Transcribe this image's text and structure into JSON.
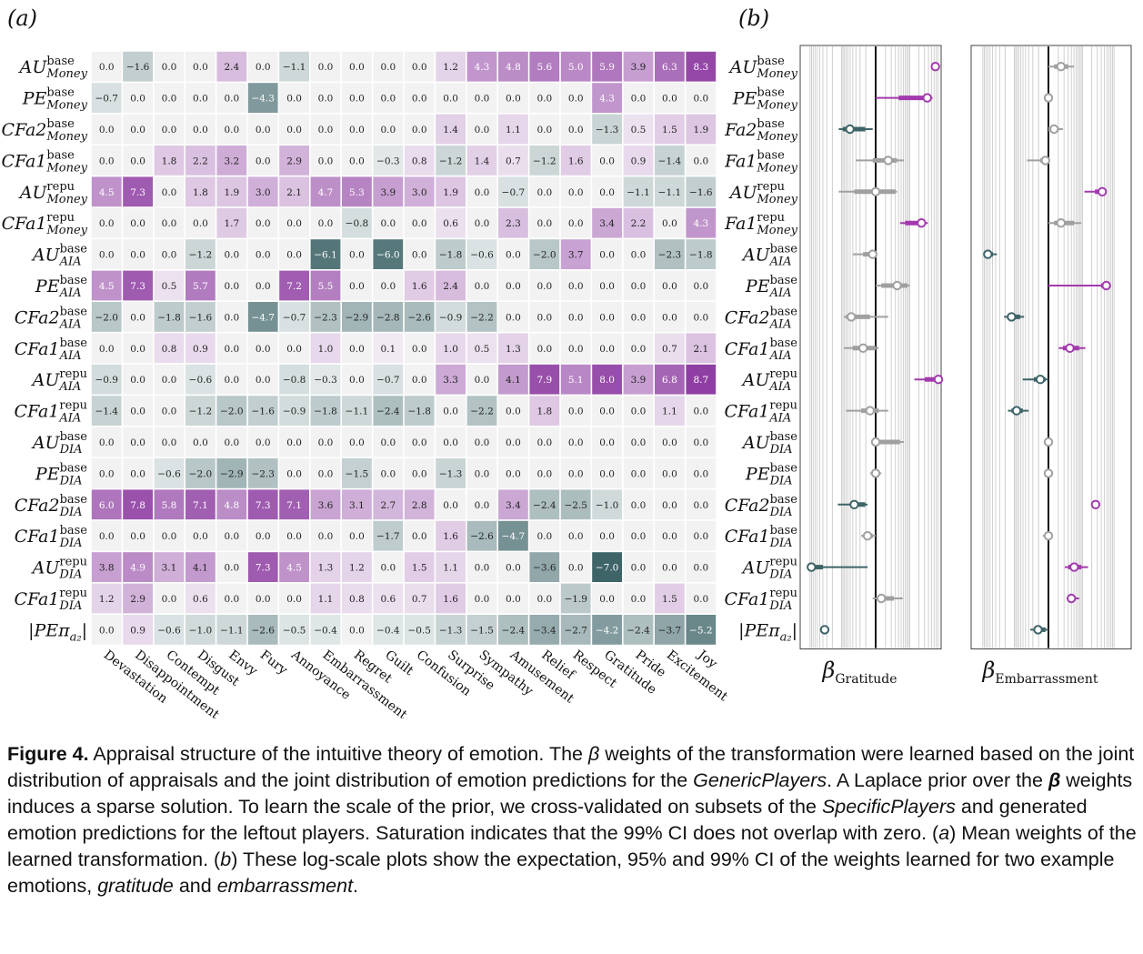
{
  "panels": {
    "a": {
      "label": "(a)"
    },
    "b": {
      "label": "(b)"
    }
  },
  "rows": [
    {
      "base": "AU",
      "sup": "base",
      "sub": "Money"
    },
    {
      "base": "PE",
      "sup": "base",
      "sub": "Money"
    },
    {
      "base": "CFa2",
      "sup": "base",
      "sub": "Money"
    },
    {
      "base": "CFa1",
      "sup": "base",
      "sub": "Money"
    },
    {
      "base": "AU",
      "sup": "repu",
      "sub": "Money"
    },
    {
      "base": "CFa1",
      "sup": "repu",
      "sub": "Money"
    },
    {
      "base": "AU",
      "sup": "base",
      "sub": "AIA"
    },
    {
      "base": "PE",
      "sup": "base",
      "sub": "AIA"
    },
    {
      "base": "CFa2",
      "sup": "base",
      "sub": "AIA"
    },
    {
      "base": "CFa1",
      "sup": "base",
      "sub": "AIA"
    },
    {
      "base": "AU",
      "sup": "repu",
      "sub": "AIA"
    },
    {
      "base": "CFa1",
      "sup": "repu",
      "sub": "AIA"
    },
    {
      "base": "AU",
      "sup": "base",
      "sub": "DIA"
    },
    {
      "base": "PE",
      "sup": "base",
      "sub": "DIA"
    },
    {
      "base": "CFa2",
      "sup": "base",
      "sub": "DIA"
    },
    {
      "base": "CFa1",
      "sup": "base",
      "sub": "DIA"
    },
    {
      "base": "AU",
      "sup": "repu",
      "sub": "DIA"
    },
    {
      "base": "CFa1",
      "sup": "repu",
      "sub": "DIA"
    },
    {
      "base": "|PEπ",
      "sup": "",
      "sub": "a₂",
      "tail": "|"
    }
  ],
  "chart_data": [
    {
      "type": "heatmap",
      "panel": "(a)",
      "columns": [
        "Devastation",
        "Disappointment",
        "Contempt",
        "Disgust",
        "Envy",
        "Fury",
        "Annoyance",
        "Embarrassment",
        "Regret",
        "Guilt",
        "Confusion",
        "Surprise",
        "Sympathy",
        "Amusement",
        "Relief",
        "Respect",
        "Gratitude",
        "Pride",
        "Excitement",
        "Joy"
      ],
      "values": [
        [
          0.0,
          -1.6,
          0.0,
          0.0,
          2.4,
          0.0,
          -1.1,
          0.0,
          0.0,
          0.0,
          0.0,
          1.2,
          4.3,
          4.8,
          5.6,
          5.0,
          5.9,
          3.9,
          6.3,
          8.3
        ],
        [
          -0.7,
          0.0,
          0.0,
          0.0,
          0.0,
          -4.3,
          0.0,
          0.0,
          0.0,
          0.0,
          0.0,
          0.0,
          0.0,
          0.0,
          0.0,
          0.0,
          4.3,
          0.0,
          0.0,
          0.0
        ],
        [
          0.0,
          0.0,
          0.0,
          0.0,
          0.0,
          0.0,
          0.0,
          0.0,
          0.0,
          0.0,
          0.0,
          1.4,
          0.0,
          1.1,
          0.0,
          0.0,
          -1.3,
          0.5,
          1.5,
          1.9
        ],
        [
          0.0,
          0.0,
          1.8,
          2.2,
          3.2,
          0.0,
          2.9,
          0.0,
          0.0,
          -0.3,
          0.8,
          -1.2,
          1.4,
          0.7,
          -1.2,
          1.6,
          0.0,
          0.9,
          -1.4,
          0.0
        ],
        [
          4.5,
          7.3,
          0.0,
          1.8,
          1.9,
          3.0,
          2.1,
          4.7,
          5.3,
          3.9,
          3.0,
          1.9,
          0.0,
          -0.7,
          0.0,
          0.0,
          0.0,
          -1.1,
          -1.1,
          -1.6
        ],
        [
          0.0,
          0.0,
          0.0,
          0.0,
          1.7,
          0.0,
          0.0,
          0.0,
          -0.8,
          0.0,
          0.0,
          0.6,
          0.0,
          2.3,
          0.0,
          0.0,
          3.4,
          2.2,
          0.0,
          4.3
        ],
        [
          0.0,
          0.0,
          0.0,
          -1.2,
          0.0,
          0.0,
          0.0,
          -6.1,
          0.0,
          -6.0,
          0.0,
          -1.8,
          -0.6,
          0.0,
          -2.0,
          3.7,
          0.0,
          0.0,
          -2.3,
          -1.8
        ],
        [
          4.5,
          7.3,
          0.5,
          5.7,
          0.0,
          0.0,
          7.2,
          5.5,
          0.0,
          0.0,
          1.6,
          2.4,
          0.0,
          0.0,
          0.0,
          0.0,
          0.0,
          0.0,
          0.0,
          0.0
        ],
        [
          -2.0,
          0.0,
          -1.8,
          -1.6,
          0.0,
          -4.7,
          -0.7,
          -2.3,
          -2.9,
          -2.8,
          -2.6,
          -0.9,
          -2.2,
          0.0,
          0.0,
          0.0,
          0.0,
          0.0,
          0.0,
          0.0
        ],
        [
          0.0,
          0.0,
          0.8,
          0.9,
          0.0,
          0.0,
          0.0,
          1.0,
          0.0,
          0.1,
          0.0,
          1.0,
          0.5,
          1.3,
          0.0,
          0.0,
          0.0,
          0.0,
          0.7,
          2.1
        ],
        [
          -0.9,
          0.0,
          0.0,
          -0.6,
          0.0,
          0.0,
          -0.8,
          -0.3,
          0.0,
          -0.7,
          0.0,
          3.3,
          0.0,
          4.1,
          7.9,
          5.1,
          8.0,
          3.9,
          6.8,
          8.7
        ],
        [
          -1.4,
          0.0,
          0.0,
          -1.2,
          -2.0,
          -1.6,
          -0.9,
          -1.8,
          -1.1,
          -2.4,
          -1.8,
          0.0,
          -2.2,
          0.0,
          1.8,
          0.0,
          0.0,
          0.0,
          1.1,
          0.0
        ],
        [
          0.0,
          0.0,
          0.0,
          0.0,
          0.0,
          0.0,
          0.0,
          0.0,
          0.0,
          0.0,
          0.0,
          0.0,
          0.0,
          0.0,
          0.0,
          0.0,
          0.0,
          0.0,
          0.0,
          0.0
        ],
        [
          0.0,
          0.0,
          -0.6,
          -2.0,
          -2.9,
          -2.3,
          0.0,
          0.0,
          -1.5,
          0.0,
          0.0,
          -1.3,
          0.0,
          0.0,
          0.0,
          0.0,
          0.0,
          0.0,
          0.0,
          0.0
        ],
        [
          6.0,
          7.8,
          5.8,
          7.1,
          4.8,
          7.3,
          7.1,
          3.6,
          3.1,
          2.7,
          2.8,
          0.0,
          0.0,
          3.4,
          -2.4,
          -2.5,
          -1.0,
          0.0,
          0.0,
          0.0
        ],
        [
          0.0,
          0.0,
          0.0,
          0.0,
          0.0,
          0.0,
          0.0,
          0.0,
          0.0,
          -1.7,
          0.0,
          1.6,
          -2.6,
          -4.7,
          0.0,
          0.0,
          0.0,
          0.0,
          0.0,
          0.0
        ],
        [
          3.8,
          4.9,
          3.1,
          4.1,
          0.0,
          7.3,
          4.5,
          1.3,
          1.2,
          0.0,
          1.5,
          1.1,
          0.0,
          0.0,
          -3.6,
          0.0,
          -7.0,
          0.0,
          0.0,
          0.0
        ],
        [
          1.2,
          2.9,
          0.0,
          0.6,
          0.0,
          0.0,
          0.0,
          1.1,
          0.8,
          0.6,
          0.7,
          1.6,
          0.0,
          0.0,
          0.0,
          -1.9,
          0.0,
          0.0,
          1.5,
          0.0
        ],
        [
          0.0,
          0.9,
          -0.6,
          -1.0,
          -1.1,
          -2.6,
          -0.5,
          -0.4,
          0.0,
          -0.4,
          -0.5,
          -1.3,
          -1.5,
          -2.4,
          -3.4,
          -2.7,
          -4.2,
          -2.4,
          -3.7,
          -5.2
        ]
      ],
      "colors": {
        "positive": "#8f3fa3",
        "negative": "#3e6468",
        "zero": "#f2f2f2"
      }
    },
    {
      "type": "scatter",
      "panel": "(b)",
      "scale": "log",
      "xlabel": "β",
      "xlabel_sub": "Gratitude",
      "points": [
        {
          "mean": 5.9,
          "ci95": [
            5.6,
            6.2
          ],
          "ci99": [
            5.5,
            6.4
          ],
          "sig": true
        },
        {
          "mean": 4.3,
          "ci95": [
            1.1,
            5.0
          ],
          "ci99": [
            0.0,
            5.3
          ],
          "sig": true
        },
        {
          "mean": -1.3,
          "ci95": [
            -1.9,
            -0.4
          ],
          "ci99": [
            -2.3,
            -0.1
          ],
          "sig": true
        },
        {
          "mean": 0.5,
          "ci95": [
            -0.1,
            1.0
          ],
          "ci99": [
            -0.9,
            1.5
          ],
          "sig": false
        },
        {
          "mean": 0.0,
          "ci95": [
            -1.0,
            0.9
          ],
          "ci99": [
            -2.3,
            1.0
          ],
          "sig": false
        },
        {
          "mean": 3.4,
          "ci95": [
            1.6,
            4.0
          ],
          "ci99": [
            1.2,
            4.4
          ],
          "sig": true
        },
        {
          "mean": -0.1,
          "ci95": [
            -0.5,
            0.0
          ],
          "ci99": [
            -1.1,
            0.0
          ],
          "sig": false
        },
        {
          "mean": 1.0,
          "ci95": [
            0.2,
            1.8
          ],
          "ci99": [
            0.0,
            2.0
          ],
          "sig": false
        },
        {
          "mean": -1.2,
          "ci95": [
            -1.6,
            -0.2
          ],
          "ci99": [
            -1.8,
            0.5
          ],
          "sig": false
        },
        {
          "mean": -0.5,
          "ci95": [
            -1.1,
            0.0
          ],
          "ci99": [
            -1.8,
            0.1
          ],
          "sig": false
        },
        {
          "mean": 8.0,
          "ci95": [
            3.9,
            8.1
          ],
          "ci99": [
            2.5,
            8.2
          ],
          "sig": true
        },
        {
          "mean": -0.2,
          "ci95": [
            -0.6,
            0.1
          ],
          "ci99": [
            -1.6,
            0.5
          ],
          "sig": false
        },
        {
          "mean": 0.0,
          "ci95": [
            0.0,
            1.2
          ],
          "ci99": [
            0.0,
            1.5
          ],
          "sig": false
        },
        {
          "mean": 0.0,
          "ci95": [
            -0.1,
            0.1
          ],
          "ci99": [
            -0.2,
            0.2
          ],
          "sig": false
        },
        {
          "mean": -1.0,
          "ci95": [
            -1.3,
            -0.4
          ],
          "ci99": [
            -2.4,
            -0.3
          ],
          "sig": true
        },
        {
          "mean": -0.3,
          "ci95": [
            -0.5,
            -0.1
          ],
          "ci99": [
            -0.6,
            0.0
          ],
          "sig": false
        },
        {
          "mean": -7.0,
          "ci95": [
            -7.3,
            -4.5
          ],
          "ci99": [
            -7.5,
            -0.3
          ],
          "sig": true
        },
        {
          "mean": 0.2,
          "ci95": [
            0.1,
            0.8
          ],
          "ci99": [
            -0.1,
            1.4
          ],
          "sig": false
        },
        {
          "mean": -4.2,
          "ci95": [
            -4.3,
            -4.1
          ],
          "ci99": [
            -4.4,
            -4.0
          ],
          "sig": true
        }
      ]
    },
    {
      "type": "scatter",
      "panel": "(b)",
      "scale": "log",
      "xlabel": "β",
      "xlabel_sub": "Embarrassment",
      "points": [
        {
          "mean": 0.5,
          "ci95": [
            0.2,
            0.9
          ],
          "ci99": [
            0.0,
            1.3
          ],
          "sig": false
        },
        {
          "mean": 0.0,
          "ci95": [
            0.0,
            0.0
          ],
          "ci99": [
            0.0,
            0.0
          ],
          "sig": false
        },
        {
          "mean": 0.2,
          "ci95": [
            0.0,
            0.4
          ],
          "ci99": [
            0.0,
            0.6
          ],
          "sig": false
        },
        {
          "mean": -0.1,
          "ci95": [
            -0.3,
            0.0
          ],
          "ci99": [
            -1.0,
            0.0
          ],
          "sig": false
        },
        {
          "mean": 4.7,
          "ci95": [
            3.5,
            5.1
          ],
          "ci99": [
            2.2,
            5.4
          ],
          "sig": true
        },
        {
          "mean": 0.5,
          "ci95": [
            0.2,
            1.3
          ],
          "ci99": [
            0.0,
            1.9
          ],
          "sig": false
        },
        {
          "mean": -6.1,
          "ci95": [
            -6.3,
            -5.0
          ],
          "ci99": [
            -6.4,
            -4.3
          ],
          "sig": true
        },
        {
          "mean": 5.5,
          "ci95": [
            4.5,
            5.8
          ],
          "ci99": [
            0.0,
            6.0
          ],
          "sig": true
        },
        {
          "mean": -2.3,
          "ci95": [
            -2.8,
            -1.5
          ],
          "ci99": [
            -3.2,
            -1.2
          ],
          "sig": true
        },
        {
          "mean": 1.0,
          "ci95": [
            0.6,
            1.7
          ],
          "ci99": [
            0.4,
            2.3
          ],
          "sig": true
        },
        {
          "mean": -0.3,
          "ci95": [
            -0.6,
            -0.1
          ],
          "ci99": [
            -1.3,
            0.0
          ],
          "sig": true
        },
        {
          "mean": -1.8,
          "ci95": [
            -2.3,
            -1.3
          ],
          "ci99": [
            -2.7,
            -0.9
          ],
          "sig": true
        },
        {
          "mean": 0.0,
          "ci95": [
            0.0,
            0.0
          ],
          "ci99": [
            0.0,
            0.0
          ],
          "sig": false
        },
        {
          "mean": 0.0,
          "ci95": [
            0.0,
            0.0
          ],
          "ci99": [
            0.0,
            0.0
          ],
          "sig": false
        },
        {
          "mean": 3.6,
          "ci95": [
            3.3,
            3.9
          ],
          "ci99": [
            3.2,
            4.0
          ],
          "sig": true
        },
        {
          "mean": 0.0,
          "ci95": [
            -0.1,
            0.1
          ],
          "ci99": [
            -0.2,
            0.1
          ],
          "sig": false
        },
        {
          "mean": 1.3,
          "ci95": [
            0.9,
            1.9
          ],
          "ci99": [
            0.7,
            2.6
          ],
          "sig": true
        },
        {
          "mean": 1.1,
          "ci95": [
            0.9,
            1.4
          ],
          "ci99": [
            0.8,
            1.7
          ],
          "sig": true
        },
        {
          "mean": -0.4,
          "ci95": [
            -0.6,
            -0.1
          ],
          "ci99": [
            -0.8,
            0.0
          ],
          "sig": true
        }
      ]
    }
  ],
  "caption": {
    "fig_label": "Figure 4.",
    "t1": "Appraisal structure of the intuitive theory of emotion. The ",
    "beta": "β",
    "t2": " weights of the transformation were learned based on the joint distribution of appraisals and the joint distribution of emotion predictions for the ",
    "generic": "GenericPlayers",
    "t3": ". A Laplace prior over the ",
    "t4": " weights induces a sparse solution. To learn the scale of the prior, we cross-validated on subsets of the ",
    "specific": "SpecificPlayers",
    "t5": " and generated emotion predictions for the leftout players. Saturation indicates that the 99% CI does not overlap with zero. (",
    "a": "a",
    "t6": ") Mean weights of the learned transformation. (",
    "b": "b",
    "t7": ") These log-scale plots show the expectation, 95% and 99% CI of the weights learned for two example emotions, ",
    "gratitude": "gratitude",
    "t8": " and ",
    "embarrassment": "embarrassment",
    "t9": "."
  }
}
